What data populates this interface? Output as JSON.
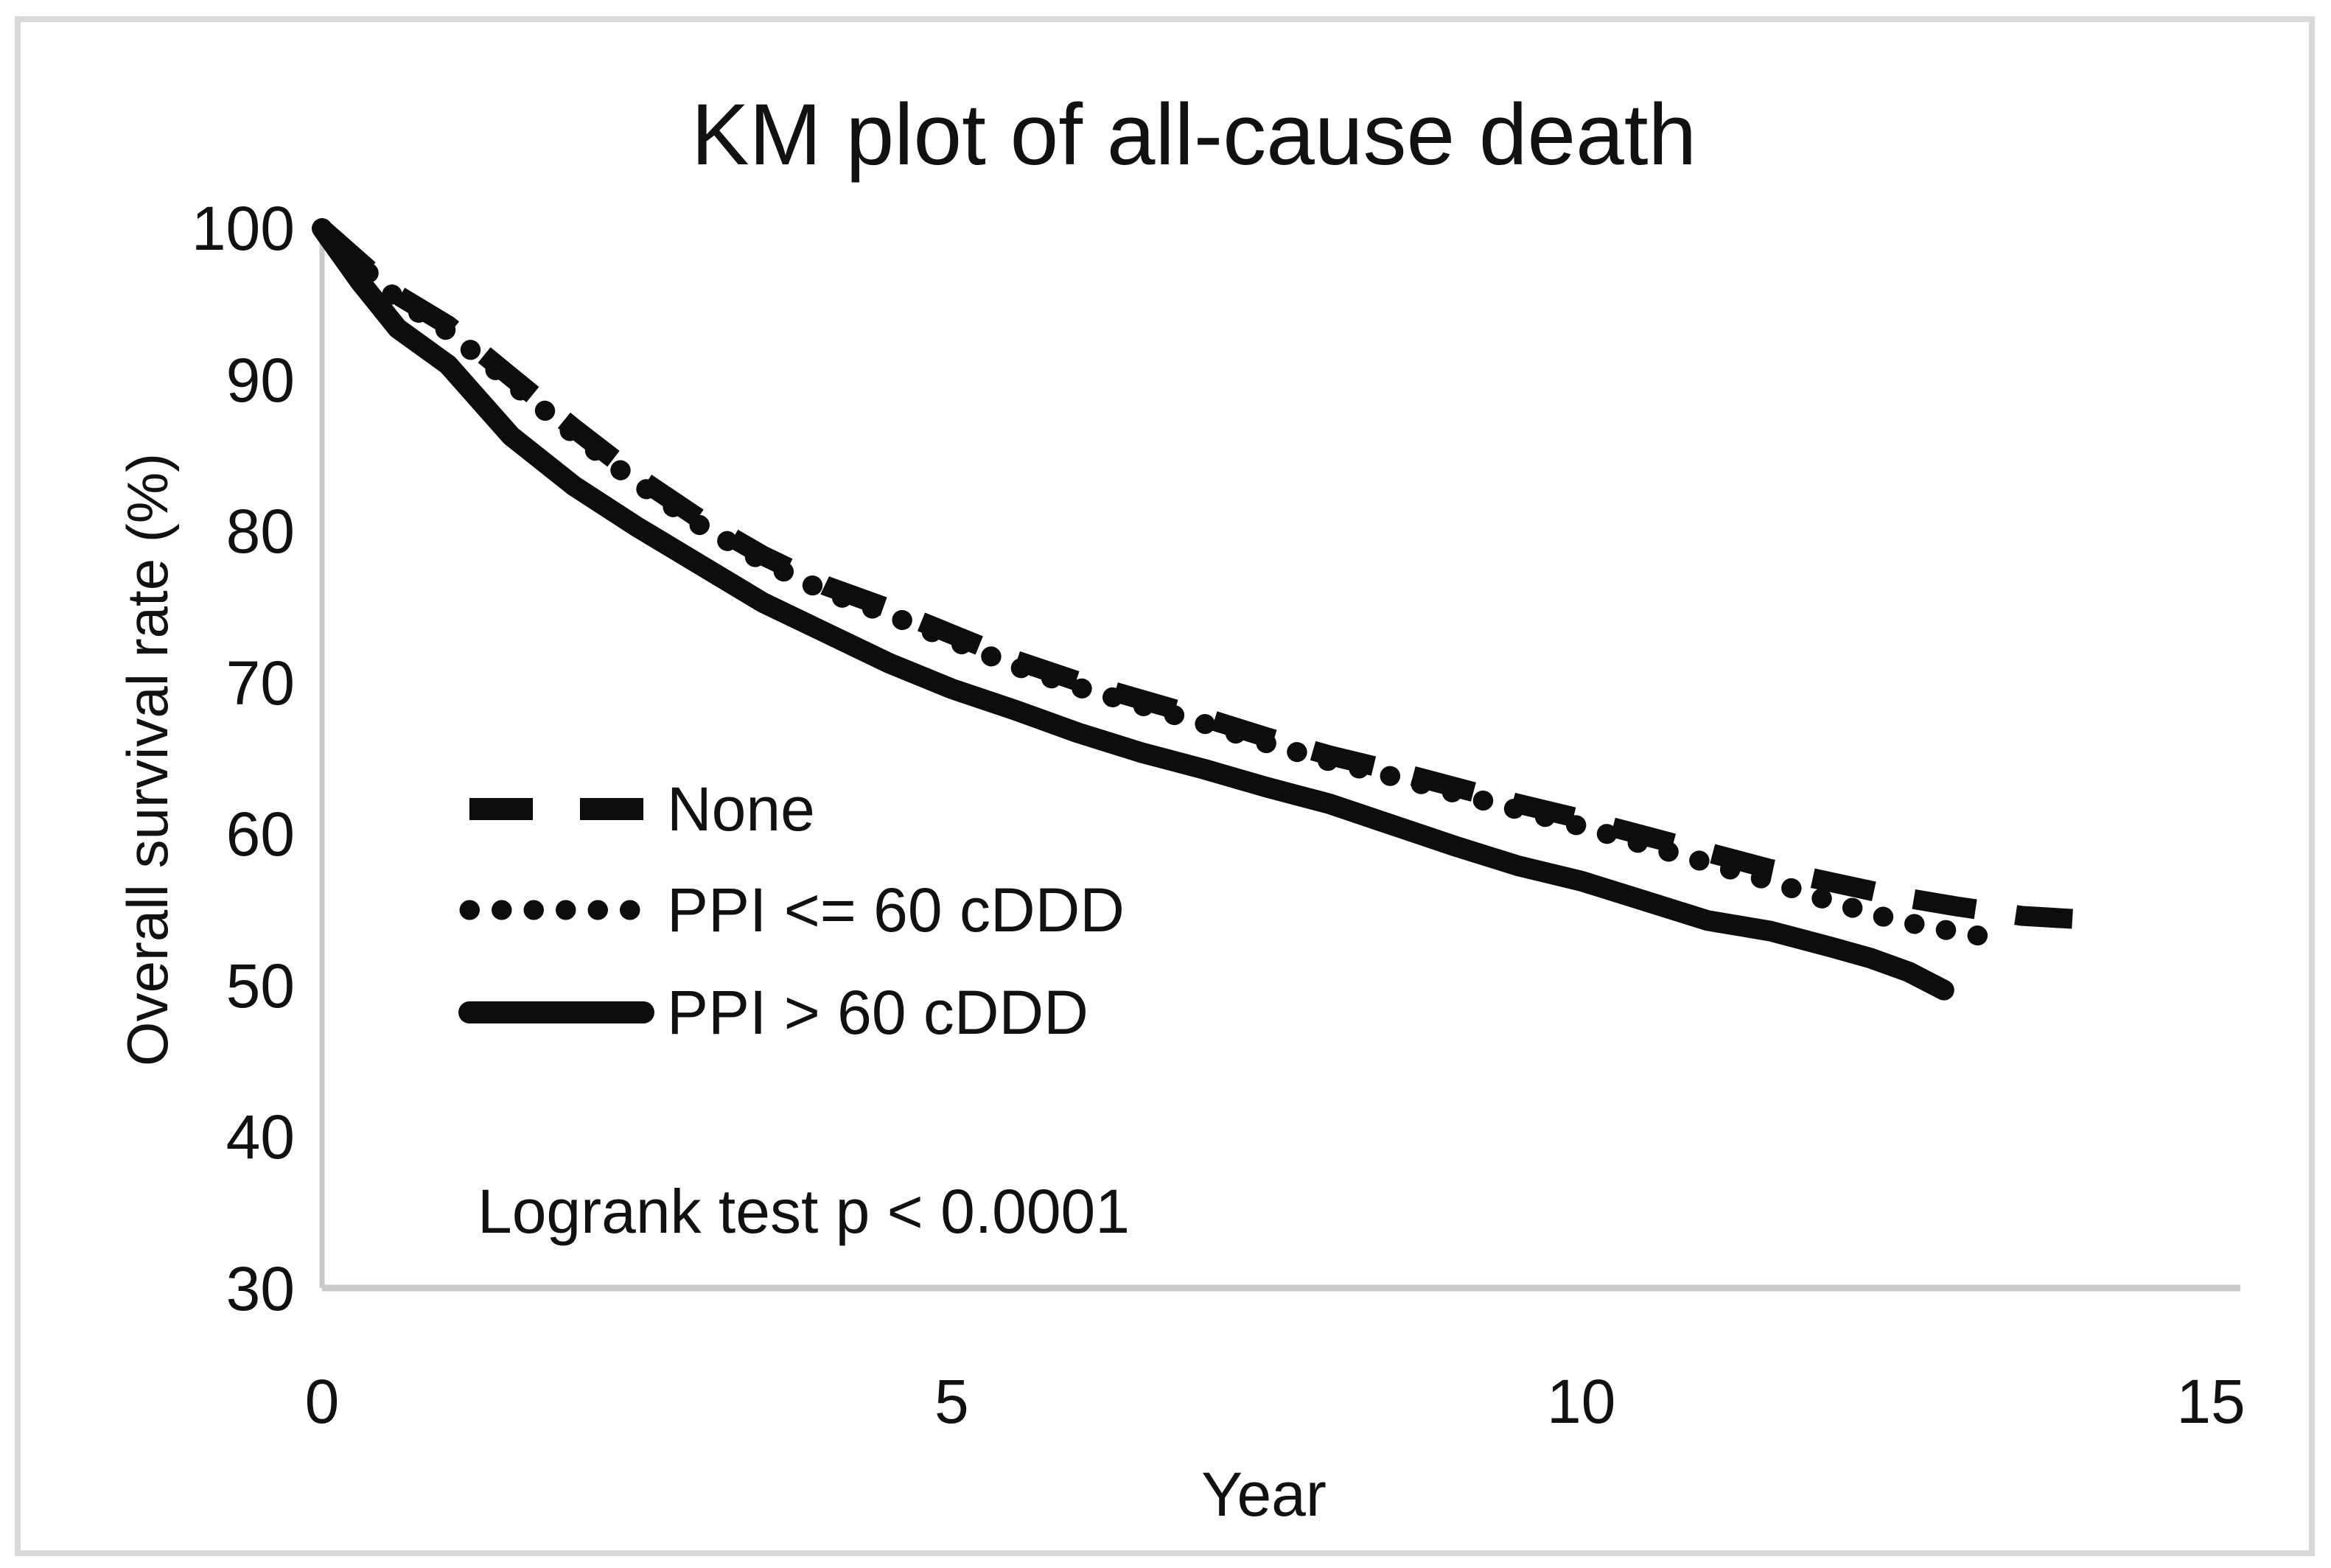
{
  "figure": {
    "title": "KM plot of all-cause death",
    "annotation": "Logrank test p < 0.0001"
  },
  "chart_data": {
    "type": "line",
    "title": "KM plot of all-cause death",
    "xlabel": "Year",
    "ylabel": "Overall survival rate (%)",
    "xlim": [
      0,
      15
    ],
    "ylim": [
      30,
      100
    ],
    "x_ticks": [
      0,
      5,
      10,
      15
    ],
    "y_ticks": [
      100,
      90,
      80,
      70,
      60,
      50,
      40,
      30
    ],
    "grid": false,
    "legend_position": "inside-left",
    "annotation": "Logrank test p < 0.0001",
    "colors": {
      "line": "#0d0d0d",
      "axis": "#c9c9c9",
      "text": "#1a1a1a"
    },
    "series": [
      {
        "name": "None",
        "line_style": "dashed",
        "x": [
          0,
          0.3,
          0.6,
          1,
          1.5,
          2,
          2.5,
          3,
          3.5,
          4,
          4.5,
          5,
          5.5,
          6,
          6.5,
          7,
          7.5,
          8,
          8.5,
          9,
          9.5,
          10,
          10.5,
          11,
          11.5,
          12,
          12.5,
          13,
          13.5,
          13.9
        ],
        "y": [
          100,
          97.8,
          95.6,
          93.6,
          90.2,
          86.8,
          83.6,
          80.8,
          78.4,
          76.4,
          74.9,
          73.2,
          71.5,
          70.1,
          68.9,
          67.7,
          66.4,
          65.2,
          64.2,
          63.1,
          62.0,
          61.0,
          59.9,
          58.8,
          57.7,
          56.8,
          55.9,
          55.2,
          54.6,
          54.4
        ]
      },
      {
        "name": "PPI <= 60 cDDD",
        "line_style": "dotted",
        "x": [
          0,
          0.3,
          0.6,
          1,
          1.5,
          2,
          2.5,
          3,
          3.5,
          4,
          4.5,
          5,
          5.5,
          6,
          6.5,
          7,
          7.5,
          8,
          8.5,
          9,
          9.5,
          10,
          10.5,
          11,
          11.5,
          12,
          12.5,
          13,
          13.3
        ],
        "y": [
          100,
          97.6,
          95.3,
          93.2,
          89.8,
          86.4,
          83.2,
          80.4,
          78.0,
          76.0,
          74.5,
          72.8,
          71.1,
          69.7,
          68.5,
          67.3,
          66.0,
          64.8,
          63.8,
          62.7,
          61.6,
          60.5,
          59.3,
          58.1,
          56.9,
          55.5,
          54.3,
          53.5,
          53.1
        ]
      },
      {
        "name": "PPI > 60 cDDD",
        "line_style": "solid",
        "x": [
          0,
          0.3,
          0.6,
          1,
          1.5,
          2,
          2.5,
          3,
          3.5,
          4,
          4.5,
          5,
          5.5,
          6,
          6.5,
          7,
          7.5,
          8,
          8.5,
          9,
          9.5,
          10,
          10.5,
          11,
          11.5,
          12,
          12.3,
          12.6,
          12.88
        ],
        "y": [
          100,
          96.5,
          93.4,
          91.0,
          86.3,
          83.0,
          80.3,
          77.8,
          75.3,
          73.3,
          71.3,
          69.6,
          68.2,
          66.7,
          65.4,
          64.3,
          63.1,
          62.0,
          60.6,
          59.2,
          57.9,
          56.9,
          55.6,
          54.3,
          53.6,
          52.5,
          51.8,
          50.9,
          49.7
        ]
      }
    ]
  }
}
